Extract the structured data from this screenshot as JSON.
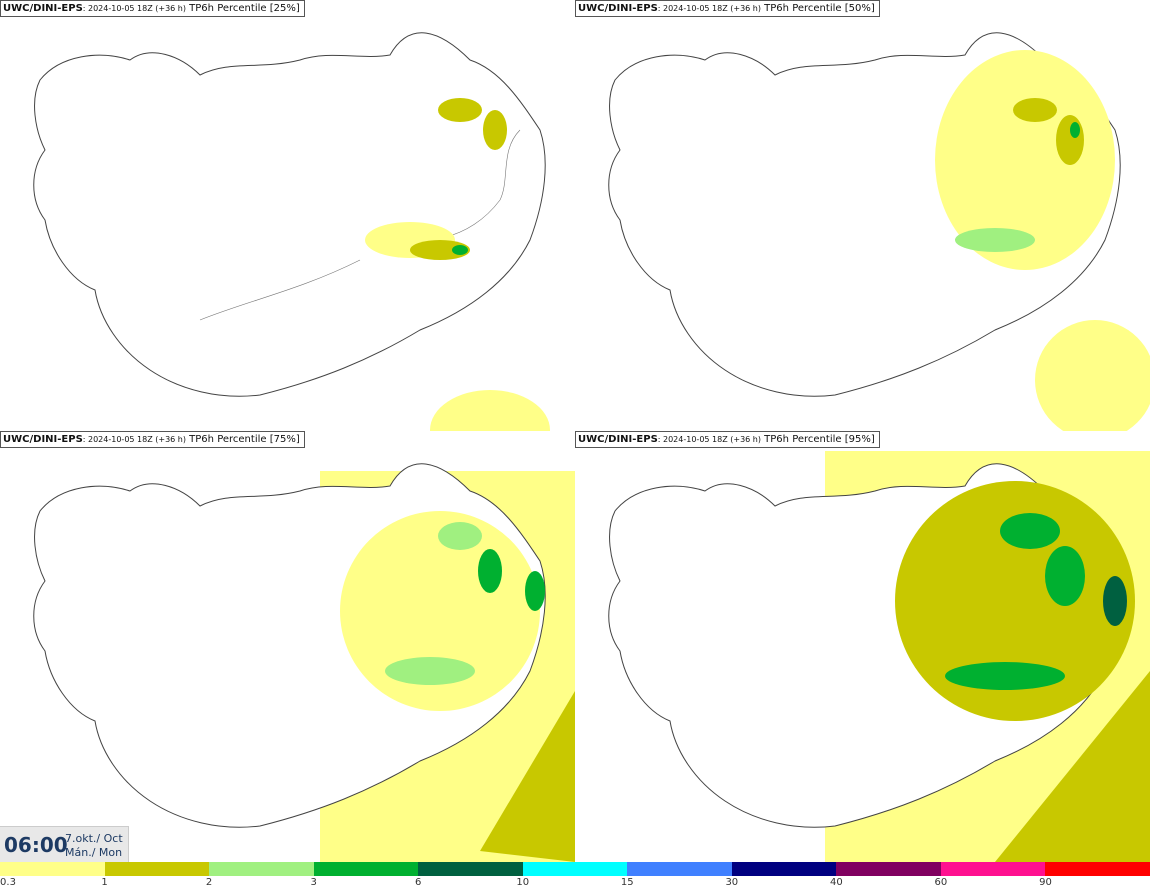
{
  "panels": [
    {
      "model": "UWC/DINI-EPS",
      "run": ": 2024-10-05 18Z (+36 h)",
      "field": "TP6h Percentile [25%]"
    },
    {
      "model": "UWC/DINI-EPS",
      "run": ": 2024-10-05 18Z (+36 h)",
      "field": "TP6h Percentile [50%]"
    },
    {
      "model": "UWC/DINI-EPS",
      "run": ": 2024-10-05 18Z (+36 h)",
      "field": "TP6h Percentile [75%]"
    },
    {
      "model": "UWC/DINI-EPS",
      "run": ": 2024-10-05 18Z (+36 h)",
      "field": "TP6h Percentile [95%]"
    }
  ],
  "time": {
    "clock": "06:00",
    "date_line1": "7.okt./ Oct",
    "date_line2": "Mán./ Mon"
  },
  "legend": {
    "colors": [
      "#ffff88",
      "#c8c800",
      "#a0f080",
      "#00b030",
      "#006040",
      "#00ffff",
      "#4080ff",
      "#000080",
      "#800060",
      "#ff1090",
      "#ff0000"
    ],
    "labels": [
      "0.3",
      "1",
      "2",
      "3",
      "6",
      "10",
      "15",
      "30",
      "40",
      "60",
      "90"
    ]
  }
}
